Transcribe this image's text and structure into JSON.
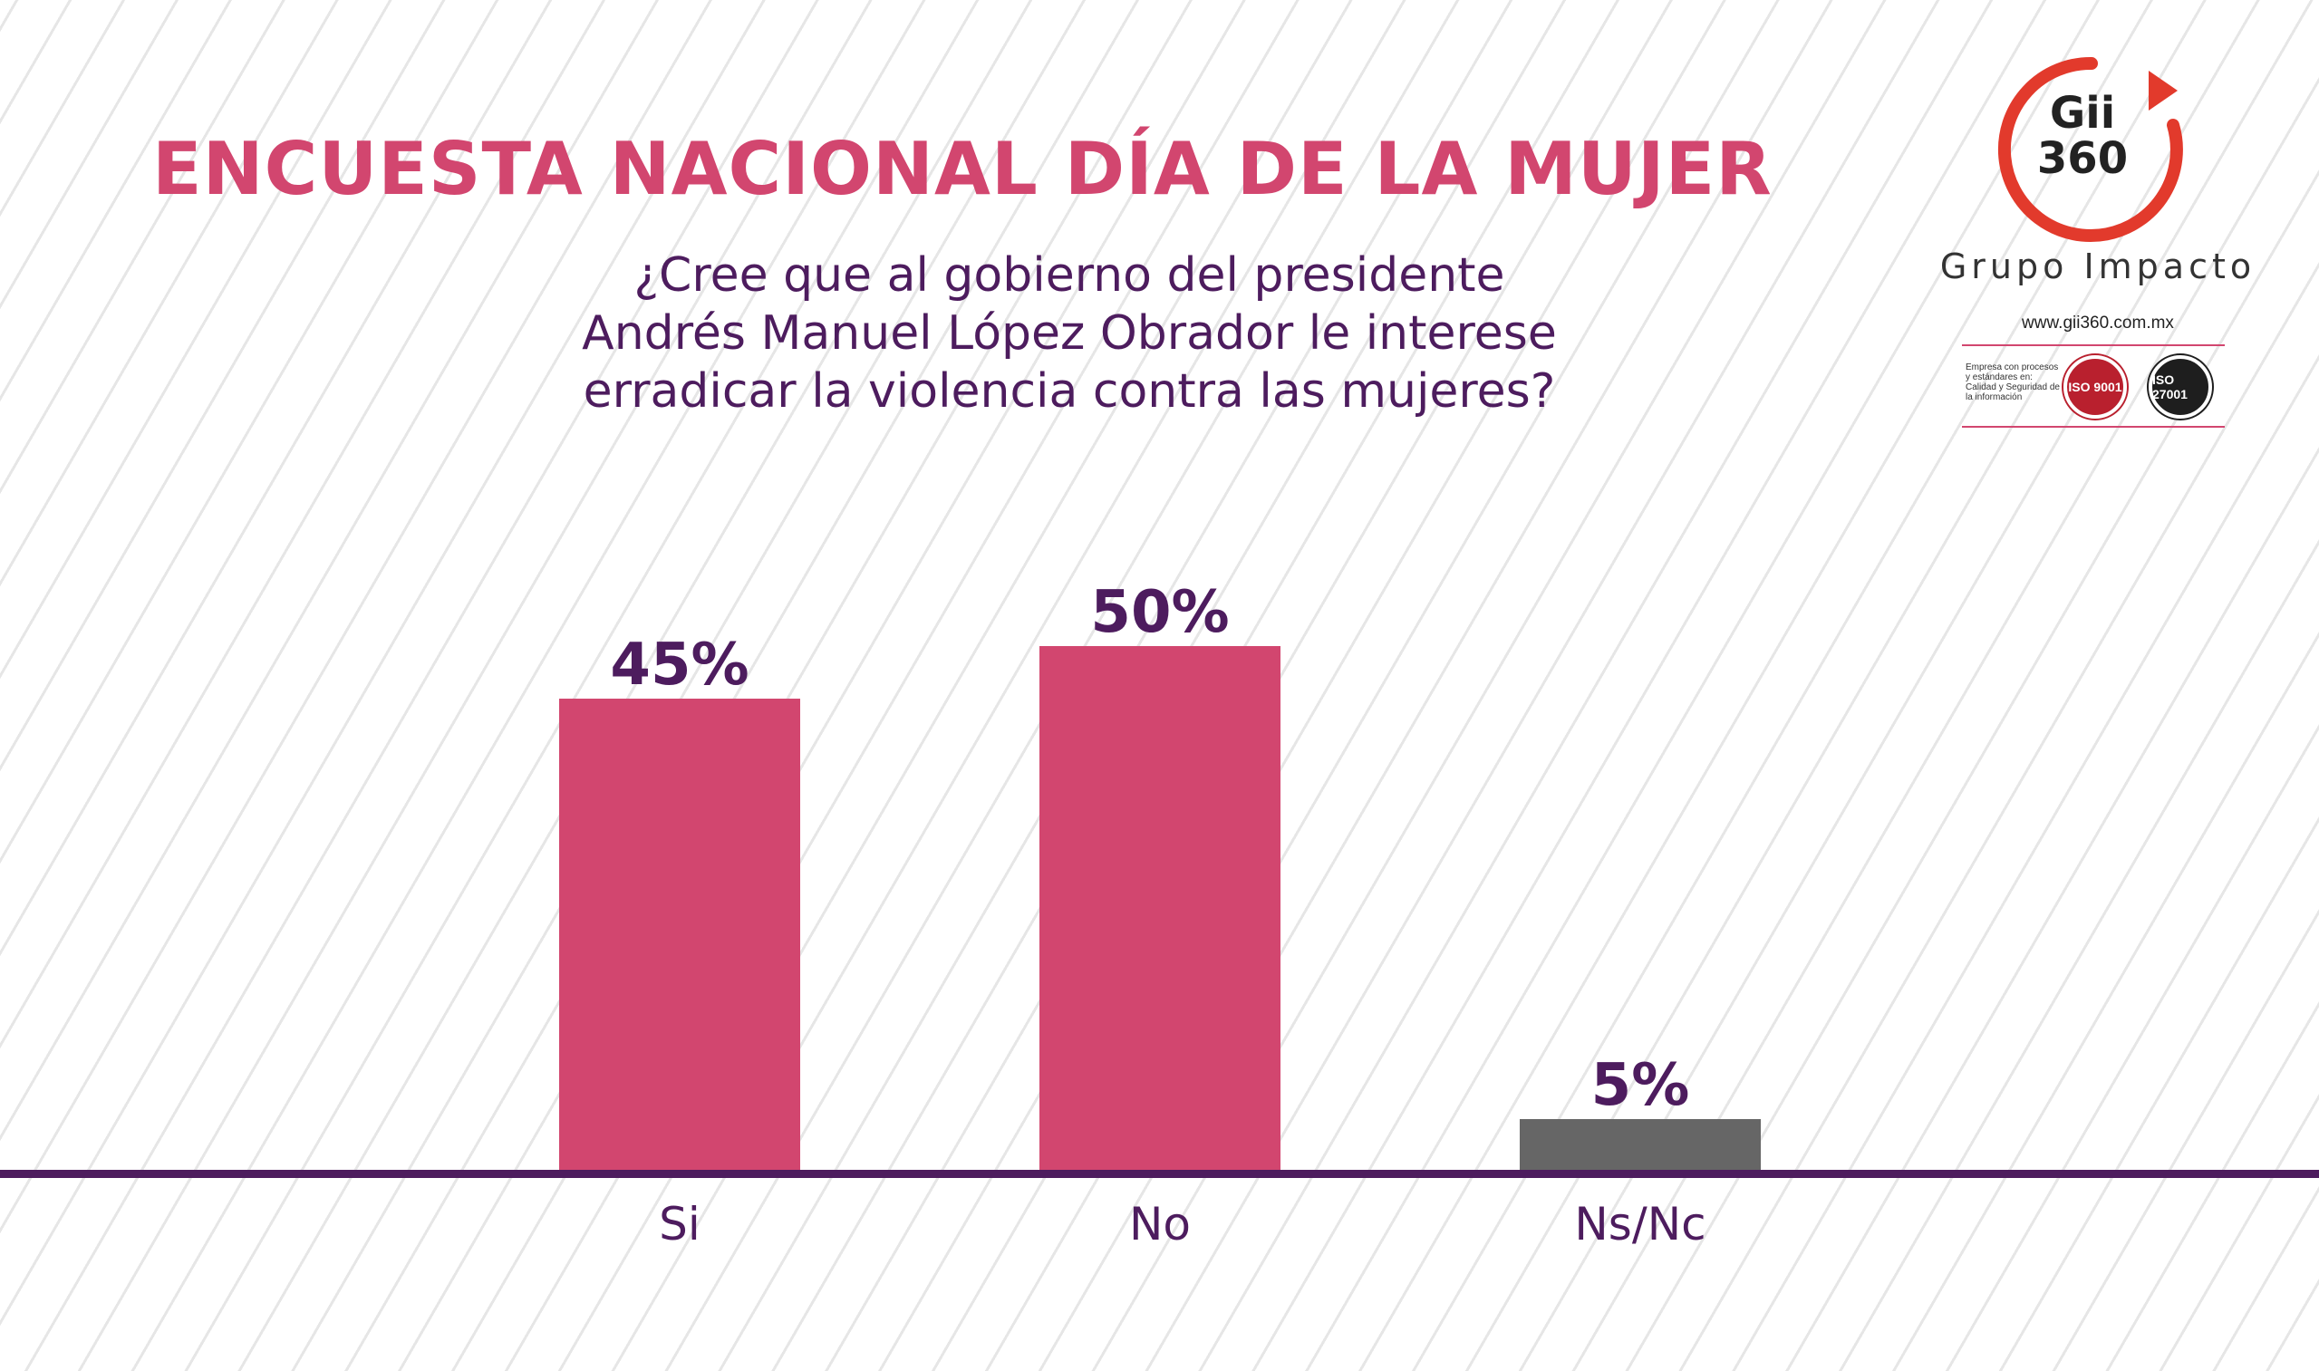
{
  "header": {
    "title": "ENCUESTA NACIONAL DÍA DE LA MUJER",
    "question_lines": [
      "¿Cree que al gobierno del presidente",
      "Andrés Manuel López Obrador le interese",
      "erradicar la violencia contra las mujeres?"
    ]
  },
  "logo": {
    "mark_line1": "Gii",
    "mark_line2": "360",
    "name": "Grupo Impacto",
    "url": "www.gii360.com.mx",
    "cert_text": "Empresa con procesos y estándares en: Calidad y Seguridad de la información",
    "cert_1": "ISO 9001",
    "cert_2": "ISO 27001",
    "ring_color": "#e23a2c"
  },
  "colors": {
    "bar_primary": "#d2466f",
    "bar_other": "#666666",
    "text_dark": "#4d1c5e",
    "axis": "#4d1c5e"
  },
  "chart_data": {
    "type": "bar",
    "categories": [
      "Si",
      "No",
      "Ns/Nc"
    ],
    "values": [
      45,
      50,
      5
    ],
    "value_labels": [
      "45%",
      "50%",
      "5%"
    ],
    "ylim": [
      0,
      100
    ],
    "grid": false,
    "legend": "none"
  }
}
